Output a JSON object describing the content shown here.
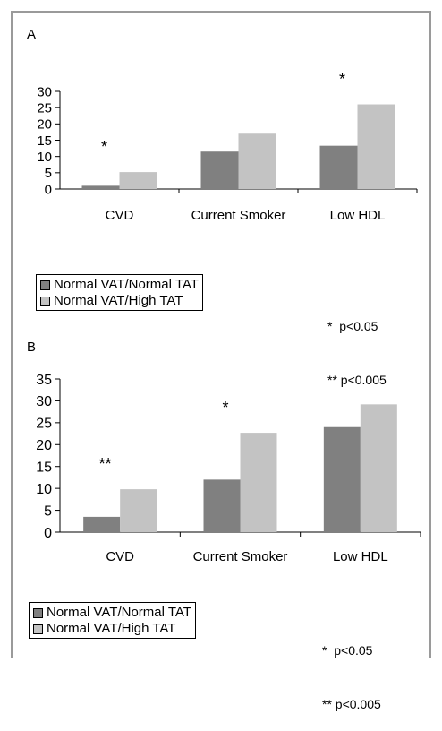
{
  "colors": {
    "normal_tat": "#808080",
    "high_tat": "#c3c3c3"
  },
  "legend": {
    "items": [
      {
        "label": "Normal VAT/Normal TAT",
        "color": "#808080"
      },
      {
        "label": "Normal VAT/High TAT",
        "color": "#c3c3c3"
      }
    ],
    "significance": [
      "*  p<0.05",
      "** p<0.005"
    ]
  },
  "chart_data": [
    {
      "panel": "A",
      "type": "bar",
      "categories": [
        "CVD",
        "Current Smoker",
        "Low HDL"
      ],
      "series": [
        {
          "name": "Normal VAT/Normal TAT",
          "values": [
            1,
            11.5,
            13.3
          ]
        },
        {
          "name": "Normal VAT/High TAT",
          "values": [
            5.2,
            17,
            26
          ]
        }
      ],
      "annotations": [
        "*",
        "",
        "*"
      ],
      "ylim": [
        0,
        30
      ],
      "yticks": [
        0,
        5,
        10,
        15,
        20,
        25,
        30
      ]
    },
    {
      "panel": "B",
      "type": "bar",
      "categories": [
        "CVD",
        "Current Smoker",
        "Low HDL"
      ],
      "series": [
        {
          "name": "Normal VAT/Normal TAT",
          "values": [
            3.5,
            12,
            24
          ]
        },
        {
          "name": "Normal VAT/High TAT",
          "values": [
            9.8,
            22.7,
            29.2
          ]
        }
      ],
      "annotations": [
        "**",
        "*",
        ""
      ],
      "ylim": [
        0,
        35
      ],
      "yticks": [
        0,
        5,
        10,
        15,
        20,
        25,
        30,
        35
      ]
    }
  ]
}
